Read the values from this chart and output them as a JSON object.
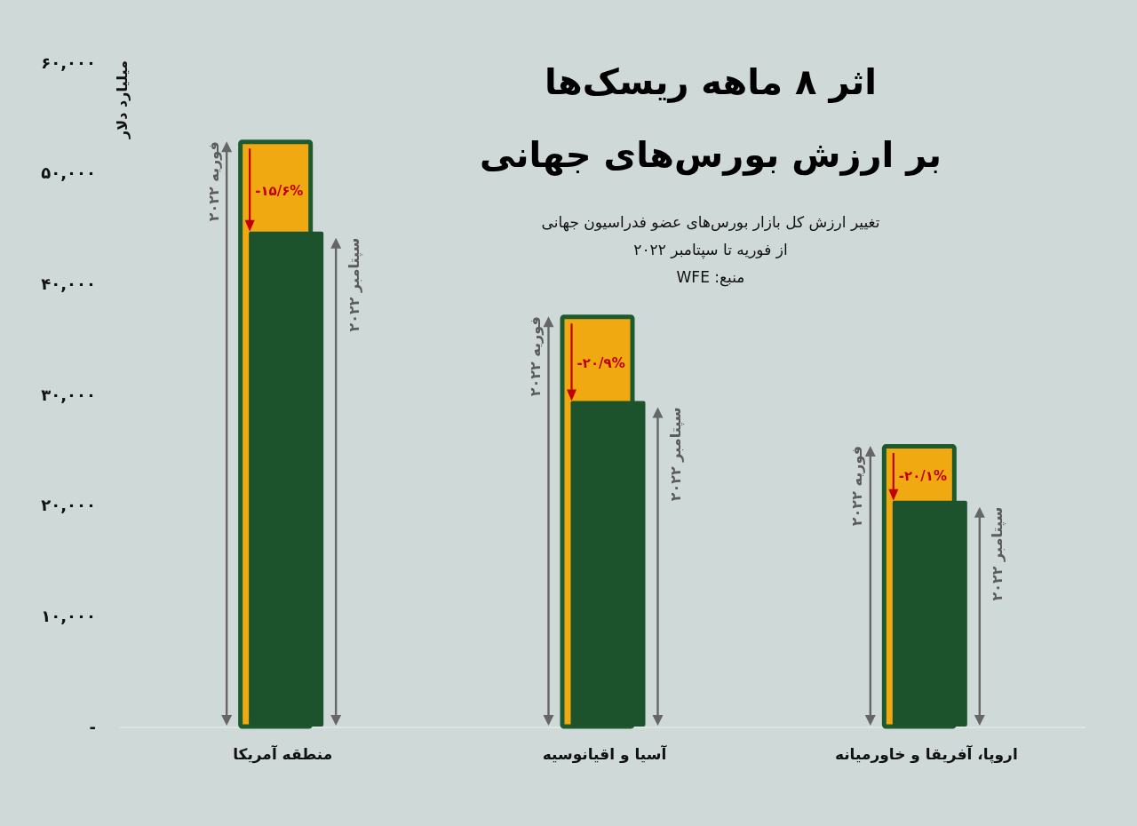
{
  "chart_data": {
    "type": "bar",
    "title": "اثر ۸ ماهه ریسک‌ها\nبر ارزش بورس‌های جهانی",
    "subtitle": "تغییر ارزش کل بازار بورس‌های عضو فدراسیون جهانی\nاز فوریه تا سپتامبر ۲۰۲۲",
    "ylabel": "میلیارد دلار",
    "categories": [
      "منطقه آمریکا",
      "آسیا و اقیانوسیه",
      "اروپا، آفریقا و خاورمیانه"
    ],
    "series": [
      {
        "name": "فوریه ۲۰۲۲",
        "color": "#f0a911",
        "values": [
          53000,
          37200,
          25500
        ]
      },
      {
        "name": "سپتامبر ۲۰۲۲",
        "color": "#1c532d",
        "values": [
          44700,
          29400,
          20400
        ]
      }
    ],
    "ylim": [
      0,
      60000
    ],
    "yticks": [
      {
        "value": 0,
        "label": "-"
      },
      {
        "value": 10000,
        "label": "۱۰,۰۰۰"
      },
      {
        "value": 20000,
        "label": "۲۰,۰۰۰"
      },
      {
        "value": 30000,
        "label": "۳۰,۰۰۰"
      },
      {
        "value": 40000,
        "label": "۴۰,۰۰۰"
      },
      {
        "value": 50000,
        "label": "۵۰,۰۰۰"
      },
      {
        "value": 60000,
        "label": "۶۰,۰۰۰"
      }
    ],
    "annotations": [
      "منبع: WFE",
      {
        "text": "-۱۵/۶%",
        "x": "منطقه آمریکا",
        "y": 44700
      },
      {
        "text": "-۲۰/۹%",
        "x": "آسیا و اقیانوسیه",
        "y": 29400
      },
      {
        "text": "-۲۰/۱%",
        "x": "اروپا، آفریقا و خاورمیانه",
        "y": 20400
      }
    ]
  }
}
